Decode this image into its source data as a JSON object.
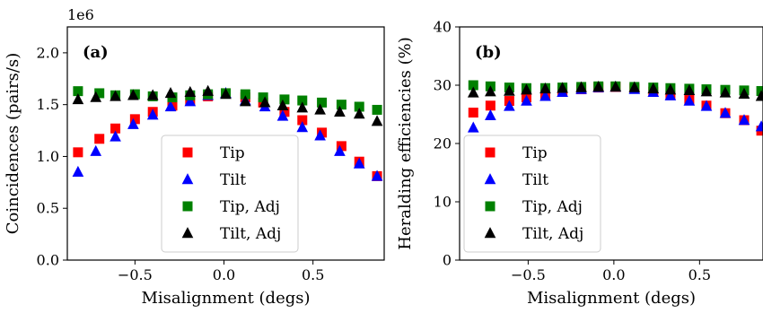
{
  "chart_data": [
    {
      "type": "scatter",
      "panel_label": "(a)",
      "xlabel": "Misalignment (degs)",
      "ylabel": "Coincidences (pairs/s)",
      "y_offset_label": "1e6",
      "xlim": [
        -0.88,
        0.9
      ],
      "ylim": [
        0.0,
        2.25
      ],
      "xticks": [
        -0.5,
        0.0,
        0.5
      ],
      "xtick_labels": [
        "−0.5",
        "0.0",
        "0.5"
      ],
      "yticks": [
        0.0,
        0.5,
        1.0,
        1.5,
        2.0
      ],
      "ytick_labels": [
        "0.0",
        "0.5",
        "1.0",
        "1.5",
        "2.0"
      ],
      "grid": false,
      "legend_position": "lower-center",
      "series": [
        {
          "name": "Tip",
          "marker": "square",
          "color": "#ff0000",
          "x": [
            -0.82,
            -0.7,
            -0.61,
            -0.5,
            -0.4,
            -0.29,
            -0.19,
            -0.09,
            0.01,
            0.12,
            0.22,
            0.34,
            0.44,
            0.55,
            0.66,
            0.76,
            0.86
          ],
          "y": [
            1.04,
            1.17,
            1.27,
            1.36,
            1.43,
            1.49,
            1.54,
            1.58,
            1.61,
            1.57,
            1.52,
            1.43,
            1.35,
            1.23,
            1.1,
            0.95,
            0.81
          ]
        },
        {
          "name": "Tilt",
          "marker": "triangle",
          "color": "#0000ff",
          "x": [
            -0.82,
            -0.72,
            -0.61,
            -0.51,
            -0.4,
            -0.3,
            -0.19,
            -0.09,
            0.01,
            0.12,
            0.23,
            0.33,
            0.44,
            0.54,
            0.65,
            0.76,
            0.86
          ],
          "y": [
            0.85,
            1.05,
            1.19,
            1.31,
            1.4,
            1.48,
            1.53,
            1.59,
            1.61,
            1.54,
            1.48,
            1.39,
            1.28,
            1.2,
            1.05,
            0.93,
            0.81
          ]
        },
        {
          "name": "Tip, Adj",
          "marker": "square",
          "color": "#008000",
          "x": [
            -0.82,
            -0.7,
            -0.61,
            -0.5,
            -0.4,
            -0.29,
            -0.19,
            -0.09,
            0.01,
            0.12,
            0.22,
            0.34,
            0.44,
            0.55,
            0.66,
            0.76,
            0.86
          ],
          "y": [
            1.63,
            1.61,
            1.59,
            1.6,
            1.58,
            1.57,
            1.59,
            1.6,
            1.61,
            1.6,
            1.57,
            1.55,
            1.54,
            1.52,
            1.5,
            1.48,
            1.45
          ]
        },
        {
          "name": "Tilt, Adj",
          "marker": "triangle",
          "color": "#000000",
          "x": [
            -0.82,
            -0.72,
            -0.61,
            -0.51,
            -0.4,
            -0.3,
            -0.19,
            -0.09,
            0.01,
            0.12,
            0.23,
            0.33,
            0.44,
            0.54,
            0.65,
            0.76,
            0.86
          ],
          "y": [
            1.55,
            1.57,
            1.58,
            1.59,
            1.59,
            1.61,
            1.62,
            1.63,
            1.6,
            1.53,
            1.52,
            1.49,
            1.47,
            1.45,
            1.43,
            1.41,
            1.34
          ]
        }
      ]
    },
    {
      "type": "scatter",
      "panel_label": "(b)",
      "xlabel": "Misalignment (degs)",
      "ylabel": "Heralding efficiencies (%)",
      "xlim": [
        -0.9,
        0.87
      ],
      "ylim": [
        0,
        40
      ],
      "xticks": [
        -0.5,
        0.0,
        0.5
      ],
      "xtick_labels": [
        "−0.5",
        "0.0",
        "0.5"
      ],
      "yticks": [
        0,
        10,
        20,
        30,
        40
      ],
      "ytick_labels": [
        "0",
        "10",
        "20",
        "30",
        "40"
      ],
      "grid": false,
      "legend_position": "lower-left",
      "series": [
        {
          "name": "Tip",
          "marker": "square",
          "color": "#ff0000",
          "x": [
            -0.82,
            -0.72,
            -0.61,
            -0.51,
            -0.4,
            -0.3,
            -0.19,
            -0.09,
            0.01,
            0.12,
            0.23,
            0.33,
            0.44,
            0.54,
            0.65,
            0.76,
            0.86
          ],
          "y": [
            25.3,
            26.5,
            27.3,
            27.9,
            28.4,
            28.9,
            29.3,
            29.6,
            29.7,
            29.4,
            28.9,
            28.3,
            27.5,
            26.5,
            25.2,
            24.0,
            22.2
          ]
        },
        {
          "name": "Tilt",
          "marker": "triangle",
          "color": "#0000ff",
          "x": [
            -0.82,
            -0.72,
            -0.61,
            -0.51,
            -0.4,
            -0.3,
            -0.19,
            -0.09,
            0.01,
            0.12,
            0.23,
            0.33,
            0.44,
            0.54,
            0.65,
            0.76,
            0.86
          ],
          "y": [
            22.7,
            24.8,
            26.4,
            27.3,
            28.1,
            28.8,
            29.3,
            29.6,
            29.7,
            29.3,
            28.8,
            28.2,
            27.3,
            26.4,
            25.2,
            24.0,
            22.9
          ]
        },
        {
          "name": "Tip, Adj",
          "marker": "square",
          "color": "#008000",
          "x": [
            -0.82,
            -0.72,
            -0.61,
            -0.51,
            -0.4,
            -0.3,
            -0.19,
            -0.09,
            0.01,
            0.12,
            0.23,
            0.33,
            0.44,
            0.54,
            0.65,
            0.76,
            0.86
          ],
          "y": [
            30.0,
            29.8,
            29.6,
            29.5,
            29.5,
            29.6,
            29.7,
            29.8,
            29.8,
            29.7,
            29.6,
            29.5,
            29.4,
            29.3,
            29.2,
            29.1,
            29.0
          ]
        },
        {
          "name": "Tilt, Adj",
          "marker": "triangle",
          "color": "#000000",
          "x": [
            -0.82,
            -0.72,
            -0.61,
            -0.51,
            -0.4,
            -0.3,
            -0.19,
            -0.09,
            0.01,
            0.12,
            0.23,
            0.33,
            0.44,
            0.54,
            0.65,
            0.76,
            0.86
          ],
          "y": [
            28.7,
            28.9,
            29.0,
            29.2,
            29.4,
            29.5,
            29.6,
            29.7,
            29.7,
            29.6,
            29.4,
            29.2,
            29.1,
            28.9,
            28.7,
            28.5,
            28.1
          ]
        }
      ]
    }
  ]
}
